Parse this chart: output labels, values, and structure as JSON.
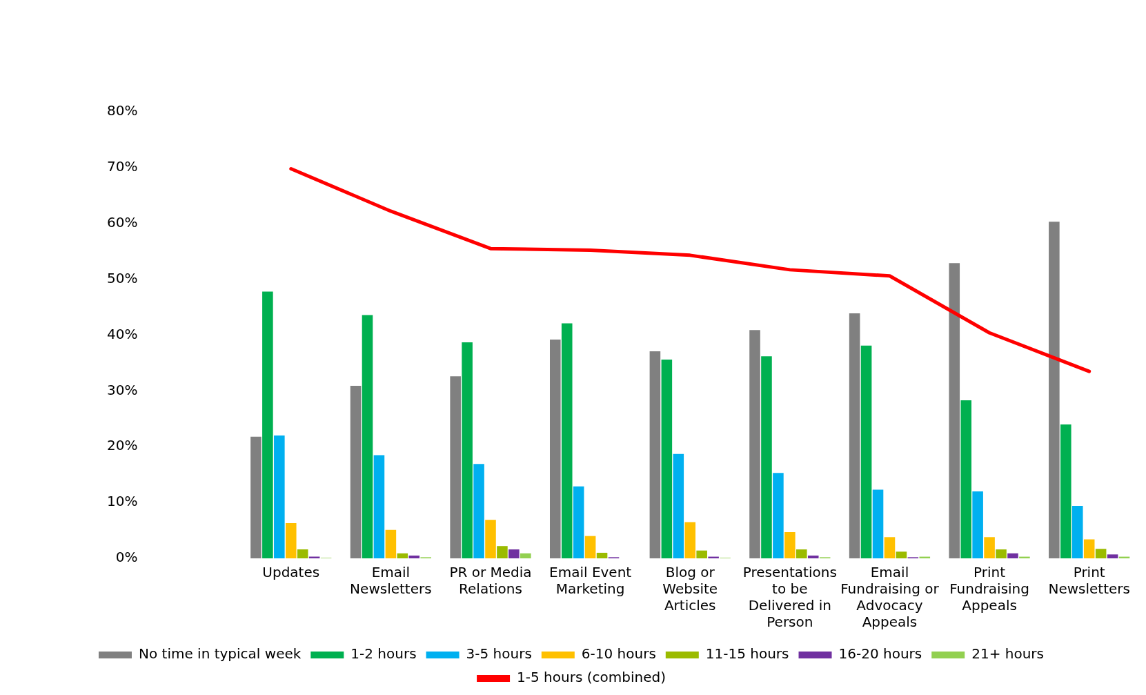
{
  "chart_data": {
    "type": "bar",
    "categories": [
      "Updates",
      "Email Newsletters",
      "PR or Media Relations",
      "Email Event Marketing",
      "Blog or Website Articles",
      "Presentations to be Delivered in Person",
      "Email Fundraising or Advocacy Appeals",
      "Print Fundraising Appeals",
      "Print Newsletters"
    ],
    "series": [
      {
        "name": "No time in typical week",
        "color": "#808080",
        "values": [
          21.8,
          30.9,
          32.6,
          39.2,
          37.1,
          40.9,
          43.9,
          52.9,
          60.3
        ]
      },
      {
        "name": "1-2 hours",
        "color": "#00b050",
        "values": [
          47.8,
          43.6,
          38.7,
          42.1,
          35.6,
          36.2,
          38.1,
          28.3,
          24.0
        ]
      },
      {
        "name": "3-5 hours",
        "color": "#00b0f0",
        "values": [
          22.0,
          18.5,
          16.9,
          12.9,
          18.7,
          15.3,
          12.3,
          12.0,
          9.4
        ]
      },
      {
        "name": "6-10 hours",
        "color": "#ffc000",
        "values": [
          6.3,
          5.1,
          6.9,
          4.0,
          6.5,
          4.7,
          3.8,
          3.8,
          3.4
        ]
      },
      {
        "name": "11-15 hours",
        "color": "#9bbb00",
        "values": [
          1.6,
          0.9,
          2.2,
          1.0,
          1.4,
          1.6,
          1.2,
          1.6,
          1.7
        ]
      },
      {
        "name": "16-20 hours",
        "color": "#7030a0",
        "values": [
          0.3,
          0.5,
          1.6,
          0.2,
          0.3,
          0.5,
          0.2,
          0.9,
          0.7
        ]
      },
      {
        "name": "21+ hours",
        "color": "#92d050",
        "values": [
          0.1,
          0.2,
          0.9,
          0.0,
          0.1,
          0.2,
          0.3,
          0.3,
          0.3
        ]
      },
      {
        "name": "1-5 hours (combined)",
        "color": "#ff0000",
        "type": "line",
        "values": [
          69.8,
          62.2,
          55.5,
          55.2,
          54.3,
          51.7,
          50.6,
          40.4,
          33.5
        ]
      }
    ],
    "ylim": [
      0,
      80
    ],
    "yticks": [
      {
        "value": 0,
        "label": "0%"
      },
      {
        "value": 10,
        "label": "10%"
      },
      {
        "value": 20,
        "label": "20%"
      },
      {
        "value": 30,
        "label": "30%"
      },
      {
        "value": 40,
        "label": "40%"
      },
      {
        "value": 50,
        "label": "50%"
      },
      {
        "value": 60,
        "label": "60%"
      },
      {
        "value": 70,
        "label": "70%"
      },
      {
        "value": 80,
        "label": "80%"
      }
    ],
    "grid": false,
    "legend": "bottom",
    "marker": "none"
  }
}
